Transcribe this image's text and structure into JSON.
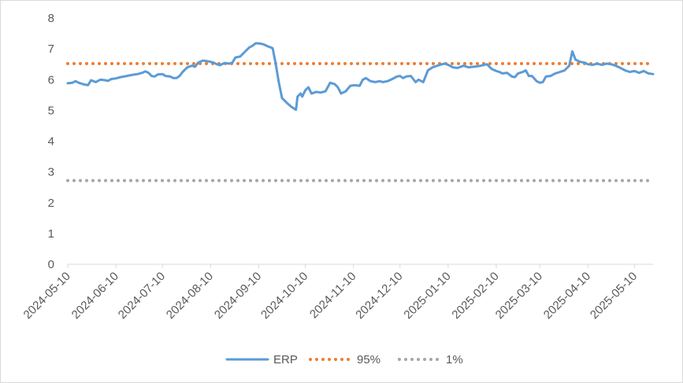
{
  "chart_data": {
    "type": "line",
    "title": "",
    "xlabel": "",
    "ylabel": "",
    "ylim": [
      0,
      8
    ],
    "yticks": [
      0,
      1,
      2,
      3,
      4,
      5,
      6,
      7,
      8
    ],
    "xlim": [
      "2024-05-10",
      "2025-05-22"
    ],
    "xticks": [
      "2024-05-10",
      "2024-06-10",
      "2024-07-10",
      "2024-08-10",
      "2024-09-10",
      "2024-10-10",
      "2024-11-10",
      "2024-12-10",
      "2025-01-10",
      "2025-02-10",
      "2025-03-10",
      "2025-04-10",
      "2025-05-10"
    ],
    "grid": false,
    "legend_position": "bottom",
    "series": [
      {
        "name": "ERP",
        "style": "solid",
        "color": "#5b9bd5",
        "points": [
          [
            "2024-05-10",
            5.88
          ],
          [
            "2024-05-13",
            5.9
          ],
          [
            "2024-05-15",
            5.95
          ],
          [
            "2024-05-17",
            5.9
          ],
          [
            "2024-05-20",
            5.85
          ],
          [
            "2024-05-23",
            5.82
          ],
          [
            "2024-05-25",
            5.98
          ],
          [
            "2024-05-28",
            5.92
          ],
          [
            "2024-05-31",
            6.0
          ],
          [
            "2024-06-03",
            5.98
          ],
          [
            "2024-06-05",
            5.96
          ],
          [
            "2024-06-07",
            6.02
          ],
          [
            "2024-06-10",
            6.04
          ],
          [
            "2024-06-13",
            6.08
          ],
          [
            "2024-06-17",
            6.12
          ],
          [
            "2024-06-20",
            6.15
          ],
          [
            "2024-06-24",
            6.18
          ],
          [
            "2024-06-27",
            6.22
          ],
          [
            "2024-06-29",
            6.27
          ],
          [
            "2024-07-01",
            6.22
          ],
          [
            "2024-07-03",
            6.12
          ],
          [
            "2024-07-05",
            6.1
          ],
          [
            "2024-07-07",
            6.17
          ],
          [
            "2024-07-10",
            6.18
          ],
          [
            "2024-07-12",
            6.12
          ],
          [
            "2024-07-15",
            6.1
          ],
          [
            "2024-07-17",
            6.05
          ],
          [
            "2024-07-19",
            6.05
          ],
          [
            "2024-07-21",
            6.12
          ],
          [
            "2024-07-23",
            6.25
          ],
          [
            "2024-07-26",
            6.4
          ],
          [
            "2024-07-29",
            6.45
          ],
          [
            "2024-07-31",
            6.42
          ],
          [
            "2024-08-02",
            6.55
          ],
          [
            "2024-08-05",
            6.62
          ],
          [
            "2024-08-08",
            6.6
          ],
          [
            "2024-08-10",
            6.58
          ],
          [
            "2024-08-12",
            6.55
          ],
          [
            "2024-08-14",
            6.5
          ],
          [
            "2024-08-16",
            6.47
          ],
          [
            "2024-08-19",
            6.54
          ],
          [
            "2024-08-22",
            6.52
          ],
          [
            "2024-08-24",
            6.55
          ],
          [
            "2024-08-26",
            6.72
          ],
          [
            "2024-08-29",
            6.75
          ],
          [
            "2024-09-01",
            6.9
          ],
          [
            "2024-09-04",
            7.05
          ],
          [
            "2024-09-06",
            7.1
          ],
          [
            "2024-09-08",
            7.18
          ],
          [
            "2024-09-10",
            7.18
          ],
          [
            "2024-09-13",
            7.15
          ],
          [
            "2024-09-16",
            7.08
          ],
          [
            "2024-09-19",
            7.02
          ],
          [
            "2024-09-21",
            6.5
          ],
          [
            "2024-09-23",
            5.9
          ],
          [
            "2024-09-25",
            5.4
          ],
          [
            "2024-09-28",
            5.25
          ],
          [
            "2024-10-01",
            5.12
          ],
          [
            "2024-10-04",
            5.02
          ],
          [
            "2024-10-05",
            5.45
          ],
          [
            "2024-10-07",
            5.55
          ],
          [
            "2024-10-08",
            5.45
          ],
          [
            "2024-10-10",
            5.65
          ],
          [
            "2024-10-12",
            5.75
          ],
          [
            "2024-10-14",
            5.55
          ],
          [
            "2024-10-17",
            5.6
          ],
          [
            "2024-10-20",
            5.58
          ],
          [
            "2024-10-23",
            5.62
          ],
          [
            "2024-10-26",
            5.9
          ],
          [
            "2024-10-29",
            5.85
          ],
          [
            "2024-10-31",
            5.75
          ],
          [
            "2024-11-02",
            5.55
          ],
          [
            "2024-11-05",
            5.62
          ],
          [
            "2024-11-08",
            5.8
          ],
          [
            "2024-11-11",
            5.82
          ],
          [
            "2024-11-14",
            5.8
          ],
          [
            "2024-11-16",
            6.0
          ],
          [
            "2024-11-18",
            6.05
          ],
          [
            "2024-11-21",
            5.95
          ],
          [
            "2024-11-24",
            5.92
          ],
          [
            "2024-11-27",
            5.95
          ],
          [
            "2024-11-29",
            5.92
          ],
          [
            "2024-12-02",
            5.95
          ],
          [
            "2024-12-05",
            6.02
          ],
          [
            "2024-12-08",
            6.1
          ],
          [
            "2024-12-10",
            6.12
          ],
          [
            "2024-12-12",
            6.05
          ],
          [
            "2024-12-14",
            6.1
          ],
          [
            "2024-12-17",
            6.12
          ],
          [
            "2024-12-20",
            5.92
          ],
          [
            "2024-12-22",
            6.0
          ],
          [
            "2024-12-25",
            5.92
          ],
          [
            "2024-12-28",
            6.3
          ],
          [
            "2024-12-31",
            6.4
          ],
          [
            "2025-01-03",
            6.45
          ],
          [
            "2025-01-06",
            6.5
          ],
          [
            "2025-01-08",
            6.52
          ],
          [
            "2025-01-10",
            6.48
          ],
          [
            "2025-01-13",
            6.4
          ],
          [
            "2025-01-16",
            6.38
          ],
          [
            "2025-01-20",
            6.45
          ],
          [
            "2025-01-23",
            6.4
          ],
          [
            "2025-01-27",
            6.42
          ],
          [
            "2025-01-31",
            6.45
          ],
          [
            "2025-02-04",
            6.5
          ],
          [
            "2025-02-07",
            6.35
          ],
          [
            "2025-02-10",
            6.28
          ],
          [
            "2025-02-12",
            6.25
          ],
          [
            "2025-02-14",
            6.2
          ],
          [
            "2025-02-17",
            6.22
          ],
          [
            "2025-02-20",
            6.1
          ],
          [
            "2025-02-22",
            6.08
          ],
          [
            "2025-02-24",
            6.2
          ],
          [
            "2025-02-27",
            6.25
          ],
          [
            "2025-03-01",
            6.3
          ],
          [
            "2025-03-03",
            6.12
          ],
          [
            "2025-03-05",
            6.12
          ],
          [
            "2025-03-08",
            5.95
          ],
          [
            "2025-03-10",
            5.9
          ],
          [
            "2025-03-12",
            5.92
          ],
          [
            "2025-03-14",
            6.1
          ],
          [
            "2025-03-17",
            6.12
          ],
          [
            "2025-03-20",
            6.2
          ],
          [
            "2025-03-23",
            6.25
          ],
          [
            "2025-03-26",
            6.3
          ],
          [
            "2025-03-29",
            6.45
          ],
          [
            "2025-03-31",
            6.92
          ],
          [
            "2025-04-02",
            6.65
          ],
          [
            "2025-04-05",
            6.58
          ],
          [
            "2025-04-08",
            6.55
          ],
          [
            "2025-04-10",
            6.5
          ],
          [
            "2025-04-13",
            6.48
          ],
          [
            "2025-04-16",
            6.52
          ],
          [
            "2025-04-19",
            6.48
          ],
          [
            "2025-04-22",
            6.52
          ],
          [
            "2025-04-25",
            6.5
          ],
          [
            "2025-04-28",
            6.45
          ],
          [
            "2025-05-01",
            6.38
          ],
          [
            "2025-05-04",
            6.3
          ],
          [
            "2025-05-07",
            6.25
          ],
          [
            "2025-05-10",
            6.28
          ],
          [
            "2025-05-13",
            6.22
          ],
          [
            "2025-05-16",
            6.28
          ],
          [
            "2025-05-19",
            6.2
          ],
          [
            "2025-05-22",
            6.18
          ]
        ]
      },
      {
        "name": "95%",
        "style": "dotted",
        "color": "#ed7d31",
        "points": [
          [
            "2024-05-10",
            6.52
          ],
          [
            "2025-05-22",
            6.52
          ]
        ]
      },
      {
        "name": "1%",
        "style": "dotted",
        "color": "#a5a5a5",
        "points": [
          [
            "2024-05-10",
            2.72
          ],
          [
            "2025-05-22",
            2.72
          ]
        ]
      }
    ]
  }
}
